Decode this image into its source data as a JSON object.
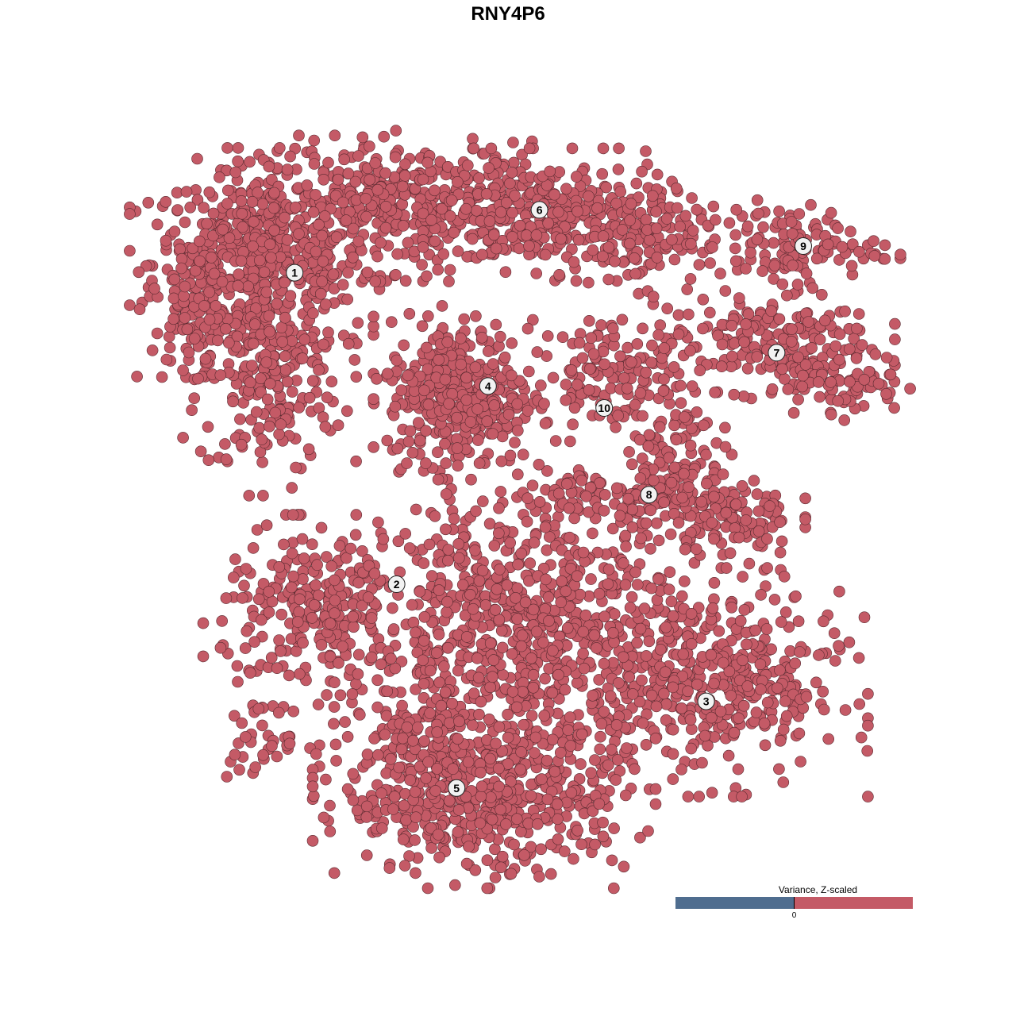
{
  "chart_data": {
    "type": "scatter",
    "title": "RNY4P6",
    "xlabel": "",
    "ylabel": "",
    "xlim": [
      -40,
      40
    ],
    "ylim": [
      -40,
      40
    ],
    "grid": false,
    "point_color": "#c45a66",
    "point_stroke": "#5a2a30",
    "note_points": "All cells drawn with the same colour (Z-scaled variance above 0); point clouds per cluster given as centre and spread in embedding units",
    "clusters": [
      {
        "label": "1",
        "label_pos": [
          -22.4,
          24.7
        ],
        "blobs": [
          {
            "c": [
              -25.8,
              25.8
            ],
            "s": [
              5.8,
              5.0
            ],
            "n": 520
          },
          {
            "c": [
              -25.0,
              13.3
            ],
            "s": [
              3.8,
              5.0
            ],
            "n": 200
          },
          {
            "c": [
              -33.3,
              21.7
            ],
            "s": [
              2.1,
              4.2
            ],
            "n": 80
          }
        ]
      },
      {
        "label": "6",
        "label_pos": [
          3.3,
          31.3
        ],
        "blobs": [
          {
            "c": [
              -10.0,
              31.7
            ],
            "s": [
              7.5,
              3.3
            ],
            "n": 400
          },
          {
            "c": [
              5.0,
              30.8
            ],
            "s": [
              5.8,
              2.9
            ],
            "n": 250
          },
          {
            "c": [
              13.3,
              28.3
            ],
            "s": [
              3.3,
              2.5
            ],
            "n": 100
          }
        ]
      },
      {
        "label": "4",
        "label_pos": [
          -2.1,
          12.8
        ],
        "blobs": [
          {
            "c": [
              -5.0,
              12.1
            ],
            "s": [
              3.8,
              3.8
            ],
            "n": 380
          }
        ]
      },
      {
        "label": "10",
        "label_pos": [
          10.1,
          10.5
        ],
        "blobs": [
          {
            "c": [
              10.0,
              14.2
            ],
            "s": [
              3.3,
              3.0
            ],
            "n": 110
          }
        ]
      },
      {
        "label": "9",
        "label_pos": [
          31.0,
          27.5
        ],
        "blobs": [
          {
            "c": [
              29.2,
              27.5
            ],
            "s": [
              5.0,
              2.1
            ],
            "n": 130
          }
        ]
      },
      {
        "label": "7",
        "label_pos": [
          28.2,
          16.3
        ],
        "blobs": [
          {
            "c": [
              26.7,
              17.5
            ],
            "s": [
              5.8,
              2.5
            ],
            "n": 200
          },
          {
            "c": [
              35.0,
              13.3
            ],
            "s": [
              3.3,
              1.7
            ],
            "n": 80
          }
        ]
      },
      {
        "label": "8",
        "label_pos": [
          14.8,
          1.4
        ],
        "blobs": [
          {
            "c": [
              17.5,
              6.7
            ],
            "s": [
              2.5,
              4.2
            ],
            "n": 120
          },
          {
            "c": [
              23.3,
              -0.8
            ],
            "s": [
              3.3,
              2.1
            ],
            "n": 120
          },
          {
            "c": [
              11.7,
              0.8
            ],
            "s": [
              4.2,
              1.7
            ],
            "n": 80
          }
        ]
      },
      {
        "label": "2",
        "label_pos": [
          -11.7,
          -8.0
        ],
        "blobs": [
          {
            "c": [
              -20.0,
              -10.8
            ],
            "s": [
              5.0,
              4.2
            ],
            "n": 260
          },
          {
            "c": [
              -25.8,
              -24.2
            ],
            "s": [
              2.5,
              1.7
            ],
            "n": 40
          }
        ]
      },
      {
        "label": "3",
        "label_pos": [
          20.8,
          -20.3
        ],
        "blobs": [
          {
            "c": [
              21.7,
              -18.3
            ],
            "s": [
              6.7,
              5.0
            ],
            "n": 420
          },
          {
            "c": [
              1.7,
              -13.3
            ],
            "s": [
              8.3,
              7.5
            ],
            "n": 850
          }
        ]
      },
      {
        "label": "5",
        "label_pos": [
          -5.4,
          -29.4
        ],
        "blobs": [
          {
            "c": [
              -2.5,
              -30.8
            ],
            "s": [
              7.5,
              3.8
            ],
            "n": 460
          },
          {
            "c": [
              -9.2,
              -25.0
            ],
            "s": [
              3.3,
              3.3
            ],
            "n": 100
          }
        ]
      }
    ],
    "legend": {
      "title": "Variance, Z-scaled",
      "tick_label": "0",
      "low_color": "#4f6d8f",
      "high_color": "#c45a66",
      "placement": "bottom-right"
    }
  }
}
